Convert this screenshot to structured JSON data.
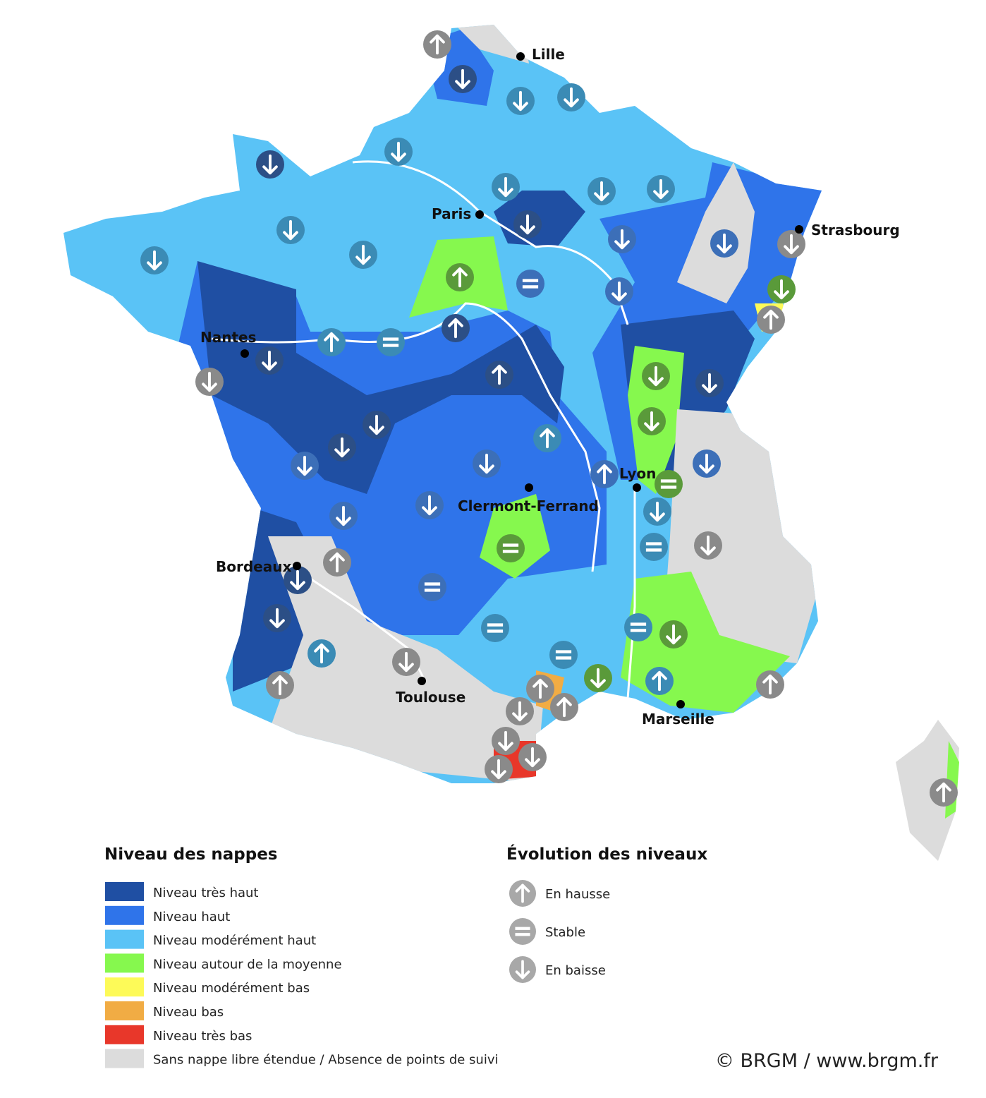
{
  "cities": [
    "Lille",
    "Paris",
    "Strasbourg",
    "Nantes",
    "Lyon",
    "Clermont-Ferrand",
    "Bordeaux",
    "Toulouse",
    "Marseille"
  ],
  "legend_levels": {
    "title": "Niveau des nappes",
    "items": [
      {
        "label": "Niveau très haut",
        "color": "#1f4fa3"
      },
      {
        "label": "Niveau haut",
        "color": "#2f74ea"
      },
      {
        "label": "Niveau modérément haut",
        "color": "#5ac3f6"
      },
      {
        "label": "Niveau autour de la moyenne",
        "color": "#86f84e"
      },
      {
        "label": "Niveau modérément bas",
        "color": "#fdfa58"
      },
      {
        "label": "Niveau bas",
        "color": "#f1ac44"
      },
      {
        "label": "Niveau très bas",
        "color": "#e8372a"
      },
      {
        "label": "Sans nappe libre étendue / Absence de points de suivi",
        "color": "#dcdcdc"
      }
    ]
  },
  "legend_trend": {
    "title": "Évolution des niveaux",
    "items": [
      {
        "label": "En hausse",
        "icon": "up"
      },
      {
        "label": "Stable",
        "icon": "eq"
      },
      {
        "label": "En baisse",
        "icon": "down"
      }
    ]
  },
  "credit": "© BRGM / www.brgm.fr"
}
